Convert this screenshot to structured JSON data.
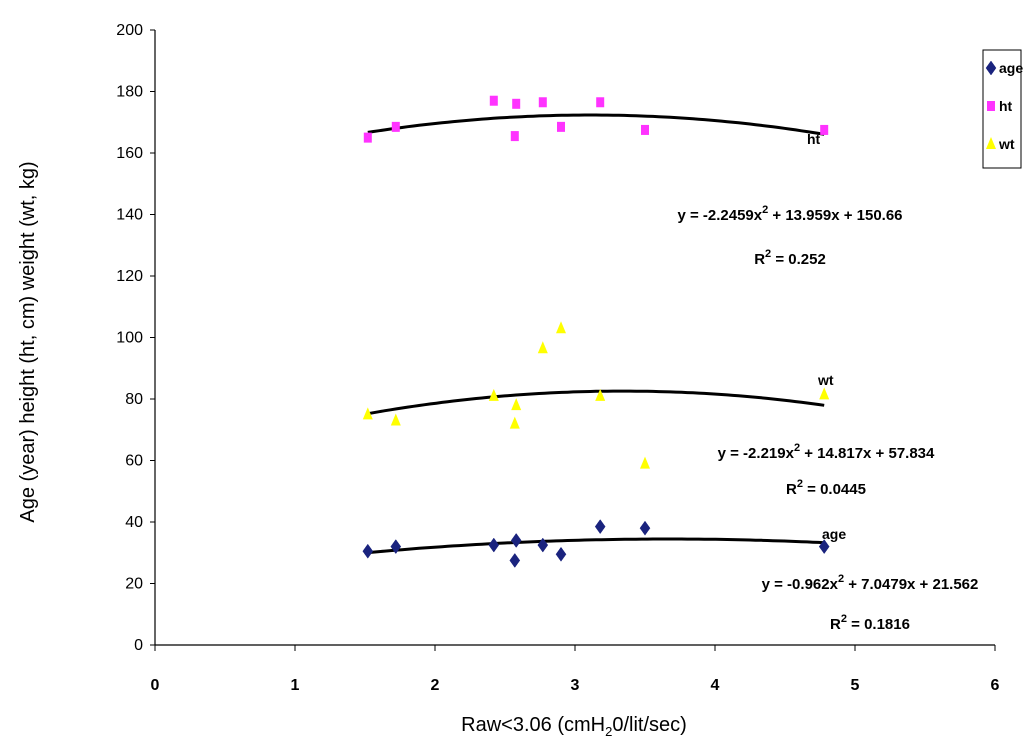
{
  "chart_data": {
    "type": "scatter",
    "xlabel": "Raw<3.06 (cmH",
    "xlabel_sub": "2",
    "xlabel_tail": "0/lit/sec)",
    "ylabel": "Age (year) height (ht, cm) weight (wt, kg)",
    "xlim": [
      0,
      6
    ],
    "ylim": [
      0,
      200
    ],
    "x_ticks": [
      0,
      1,
      2,
      3,
      4,
      5,
      6
    ],
    "y_ticks": [
      0,
      20,
      40,
      60,
      80,
      100,
      120,
      140,
      160,
      180,
      200
    ],
    "grid": false,
    "legend_position": "top-right",
    "series": [
      {
        "name": "age",
        "marker": "diamond",
        "color": "#1a237e",
        "points": [
          [
            1.52,
            30.5
          ],
          [
            1.72,
            32
          ],
          [
            2.42,
            32.5
          ],
          [
            2.58,
            34
          ],
          [
            2.57,
            27.5
          ],
          [
            2.77,
            32.5
          ],
          [
            2.9,
            29.5
          ],
          [
            3.18,
            38.5
          ],
          [
            3.5,
            38
          ],
          [
            4.78,
            32
          ]
        ],
        "fit": {
          "a": -0.962,
          "b": 7.0479,
          "c": 21.562
        },
        "label": "age",
        "equation_prefix": "y = -0.962x",
        "equation_sup": "2",
        "equation_suffix": " + 7.0479x + 21.562",
        "r2_prefix": "R",
        "r2_sup": "2",
        "r2_suffix": " = 0.1816"
      },
      {
        "name": "ht",
        "marker": "square",
        "color": "#ff33ff",
        "points": [
          [
            1.52,
            165
          ],
          [
            1.72,
            168.5
          ],
          [
            2.42,
            177
          ],
          [
            2.58,
            176
          ],
          [
            2.57,
            165.5
          ],
          [
            2.77,
            176.5
          ],
          [
            2.9,
            168.5
          ],
          [
            3.18,
            176.5
          ],
          [
            3.5,
            167.5
          ],
          [
            4.78,
            167.5
          ]
        ],
        "fit": {
          "a": -2.2459,
          "b": 13.959,
          "c": 150.66
        },
        "label": "ht",
        "equation_prefix": "y = -2.2459x",
        "equation_sup": "2",
        "equation_suffix": " + 13.959x + 150.66",
        "r2_prefix": "R",
        "r2_sup": "2",
        "r2_suffix": " = 0.252"
      },
      {
        "name": "wt",
        "marker": "triangle",
        "color": "#ffff00",
        "points": [
          [
            1.52,
            75
          ],
          [
            1.72,
            73
          ],
          [
            2.42,
            81
          ],
          [
            2.58,
            78
          ],
          [
            2.57,
            72
          ],
          [
            2.77,
            96.5
          ],
          [
            2.9,
            103
          ],
          [
            3.18,
            81
          ],
          [
            3.5,
            59
          ],
          [
            4.78,
            81.5
          ]
        ],
        "fit": {
          "a": -2.219,
          "b": 14.817,
          "c": 57.834
        },
        "label": "wt",
        "equation_prefix": "y = -2.219x",
        "equation_sup": "2",
        "equation_suffix": " + 14.817x + 57.834",
        "r2_prefix": "R",
        "r2_sup": "2",
        "r2_suffix": " = 0.0445"
      }
    ]
  }
}
